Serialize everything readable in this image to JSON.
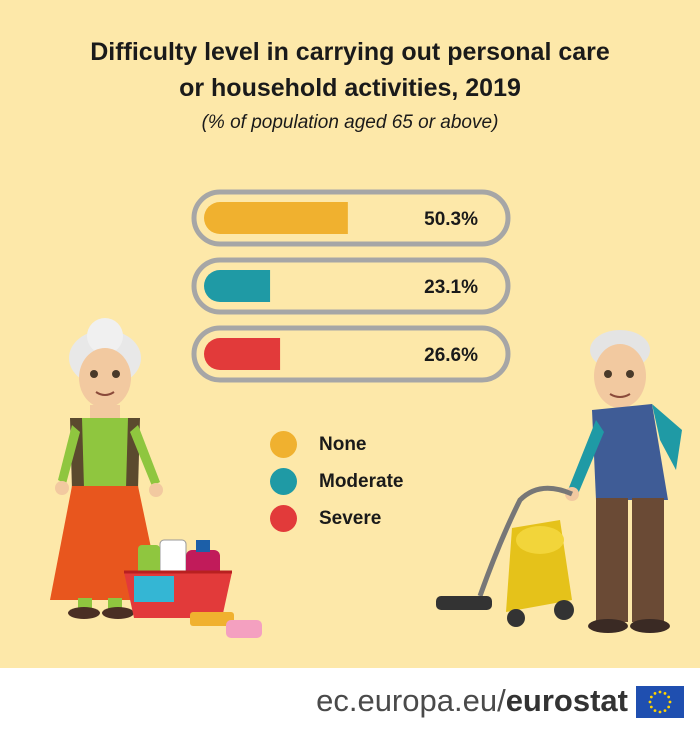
{
  "title_line1": "Difficulty level in carrying out personal care",
  "title_line2": "or household activities, 2019",
  "subtitle": "(% of population aged 65 or above)",
  "footer": {
    "site": "ec.europa.eu/",
    "brand": "eurostat"
  },
  "colors": {
    "background": "#fde8a9",
    "track": "#a6a6a6",
    "none": "#f0b12f",
    "moderate": "#1f9aa5",
    "severe": "#e23a3a"
  },
  "chart_data": {
    "type": "bar",
    "orientation": "horizontal",
    "title": "Difficulty level in carrying out personal care or household activities, 2019",
    "subtitle": "(% of population aged 65 or above)",
    "categories": [
      "None",
      "Moderate",
      "Severe"
    ],
    "values": [
      50.3,
      23.1,
      26.6
    ],
    "labels": [
      "50.3%",
      "23.1%",
      "26.6%"
    ],
    "colors": [
      "#f0b12f",
      "#1f9aa5",
      "#e23a3a"
    ],
    "xlim": [
      0,
      100
    ],
    "grid": false,
    "legend": "bottom"
  },
  "legend": [
    {
      "label": "None",
      "color": "#f0b12f"
    },
    {
      "label": "Moderate",
      "color": "#1f9aa5"
    },
    {
      "label": "Severe",
      "color": "#e23a3a"
    }
  ]
}
